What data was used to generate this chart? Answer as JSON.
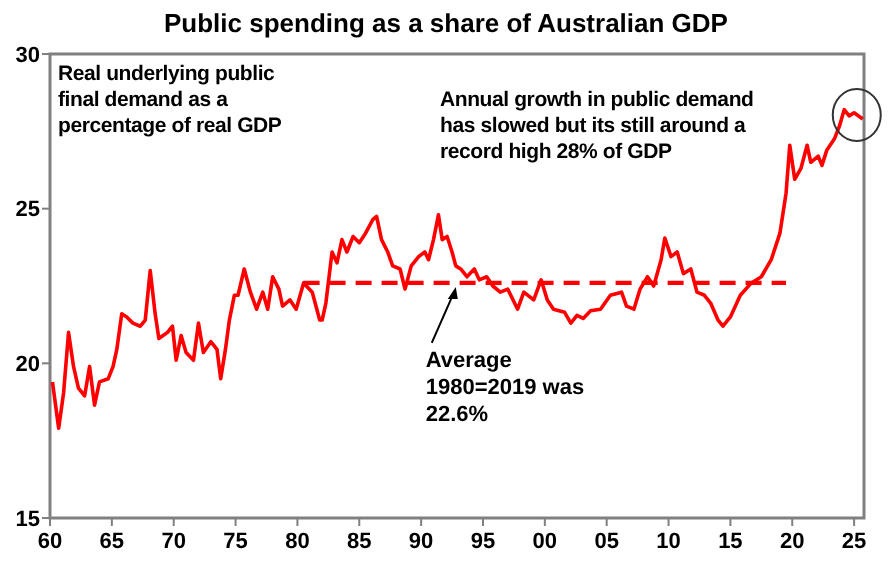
{
  "chart_data": {
    "type": "line",
    "title": "Public spending as a share of Australian GDP",
    "xlim": [
      1960,
      2025.8
    ],
    "ylim": [
      15,
      30
    ],
    "yticks": [
      15,
      20,
      25,
      30
    ],
    "xticks": [
      {
        "value": 1960,
        "label": "60"
      },
      {
        "value": 1965,
        "label": "65"
      },
      {
        "value": 1970,
        "label": "70"
      },
      {
        "value": 1975,
        "label": "75"
      },
      {
        "value": 1980,
        "label": "80"
      },
      {
        "value": 1985,
        "label": "85"
      },
      {
        "value": 1990,
        "label": "90"
      },
      {
        "value": 1995,
        "label": "95"
      },
      {
        "value": 2000,
        "label": "00"
      },
      {
        "value": 2005,
        "label": "05"
      },
      {
        "value": 2010,
        "label": "10"
      },
      {
        "value": 2015,
        "label": "15"
      },
      {
        "value": 2020,
        "label": "20"
      },
      {
        "value": 2025,
        "label": "25"
      }
    ],
    "grid": false,
    "marker": "none",
    "series": [
      {
        "color": "#ff0000",
        "line_style": "solid",
        "x": [
          1960.2,
          1960.7,
          1961.1,
          1961.5,
          1961.9,
          1962.3,
          1962.8,
          1963.2,
          1963.6,
          1964.0,
          1964.7,
          1965.1,
          1965.4,
          1965.8,
          1966.2,
          1966.7,
          1967.3,
          1967.7,
          1968.1,
          1968.5,
          1968.8,
          1969.5,
          1969.9,
          1970.2,
          1970.6,
          1971.0,
          1971.6,
          1972.0,
          1972.4,
          1973.0,
          1973.5,
          1973.8,
          1974.2,
          1974.5,
          1974.9,
          1975.2,
          1975.7,
          1976.2,
          1976.7,
          1977.2,
          1977.6,
          1978.0,
          1978.5,
          1978.8,
          1979.4,
          1979.9,
          1980.5,
          1981.2,
          1981.8,
          1982.0,
          1982.3,
          1982.8,
          1983.2,
          1983.6,
          1984.0,
          1984.5,
          1985.0,
          1985.5,
          1986.1,
          1986.4,
          1986.8,
          1987.3,
          1987.7,
          1988.3,
          1988.7,
          1989.2,
          1989.8,
          1990.3,
          1990.6,
          1991.0,
          1991.4,
          1991.7,
          1992.1,
          1992.5,
          1992.8,
          1993.2,
          1993.7,
          1994.3,
          1994.7,
          1995.3,
          1995.8,
          1996.4,
          1997.0,
          1997.8,
          1998.3,
          1999.1,
          1999.7,
          2000.2,
          2000.7,
          2001.6,
          2002.1,
          2002.6,
          2003.1,
          2003.7,
          2004.5,
          2005.3,
          2006.2,
          2006.6,
          2007.2,
          2007.7,
          2008.3,
          2008.8,
          2009.4,
          2009.7,
          2010.2,
          2010.7,
          2011.2,
          2011.8,
          2012.3,
          2012.9,
          2013.4,
          2014.0,
          2014.4,
          2015.0,
          2015.8,
          2016.7,
          2017.5,
          2018.3,
          2019.0,
          2019.5,
          2019.8,
          2020.2,
          2020.7,
          2021.2,
          2021.5,
          2022.1,
          2022.4,
          2022.8,
          2023.4,
          2023.8,
          2024.2,
          2024.6,
          2025.0,
          2025.7
        ],
        "values": [
          19.4,
          17.9,
          19.05,
          21.0,
          19.9,
          19.2,
          18.95,
          19.9,
          18.65,
          19.4,
          19.5,
          19.9,
          20.45,
          21.6,
          21.5,
          21.3,
          21.2,
          21.4,
          23.0,
          21.6,
          20.8,
          21.0,
          21.2,
          20.1,
          20.9,
          20.35,
          20.1,
          21.3,
          20.35,
          20.7,
          20.45,
          19.5,
          20.5,
          21.4,
          22.2,
          22.2,
          23.05,
          22.3,
          21.75,
          22.3,
          21.75,
          22.8,
          22.4,
          21.85,
          22.05,
          21.75,
          22.6,
          22.3,
          21.4,
          21.4,
          21.95,
          23.6,
          23.25,
          24.0,
          23.6,
          24.1,
          23.9,
          24.2,
          24.65,
          24.75,
          24.0,
          23.6,
          23.15,
          23.05,
          22.4,
          23.15,
          23.45,
          23.6,
          23.35,
          24.0,
          24.8,
          24.0,
          24.1,
          23.6,
          23.15,
          23.05,
          22.8,
          23.05,
          22.7,
          22.8,
          22.5,
          22.3,
          22.4,
          21.75,
          22.3,
          22.05,
          22.7,
          22.05,
          21.75,
          21.65,
          21.3,
          21.55,
          21.45,
          21.7,
          21.75,
          22.2,
          22.3,
          21.85,
          21.75,
          22.4,
          22.8,
          22.5,
          23.35,
          24.05,
          23.45,
          23.6,
          22.9,
          23.05,
          22.3,
          22.2,
          21.95,
          21.4,
          21.2,
          21.5,
          22.2,
          22.6,
          22.8,
          23.35,
          24.2,
          25.5,
          27.05,
          25.95,
          26.3,
          27.05,
          26.5,
          26.7,
          26.4,
          26.9,
          27.25,
          27.65,
          28.2,
          28.0,
          28.1,
          27.9
        ]
      },
      {
        "color": "#ff0000",
        "line_style": "dashed",
        "x": [
          1980.5,
          2019.5
        ],
        "values": [
          22.6,
          22.6
        ]
      }
    ],
    "annotations": [
      "Real underlying public final demand as a percentage of real GDP",
      "Annual growth in public demand has slowed but its still around a record high 28% of GDP",
      {
        "text": "Average 1980=2019 was 22.6%",
        "x": 1992.8,
        "y": 22.6
      }
    ]
  }
}
